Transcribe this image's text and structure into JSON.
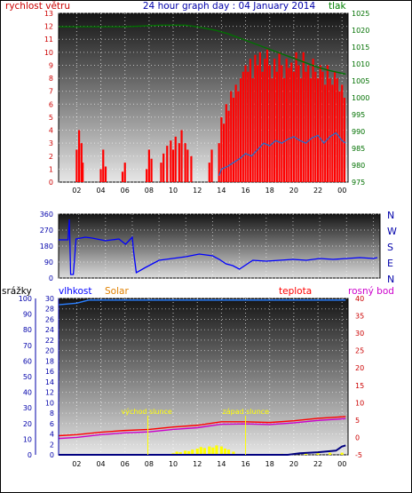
{
  "header": {
    "left_label": "rychlost větru",
    "title": "24 hour graph day : 04 January 2014",
    "right_label": "tlak"
  },
  "colors": {
    "wind_speed": "#ff0000",
    "gust": "#1f6fd0",
    "pressure": "#007000",
    "direction": "#0000ff",
    "axis_blue": "#0000aa",
    "axis_red": "#cc0000",
    "temp": "#ff0000",
    "dew": "#cc00cc",
    "humidity": "#2a7fff",
    "solar": "#ffff00",
    "rain": "#000080",
    "bottom_label_srazky": "#000000",
    "bottom_label_vlhkost": "#0000ff",
    "bottom_label_solar": "#e08000",
    "bottom_label_teplota": "#ff0000",
    "bottom_label_rosny": "#cc00cc"
  },
  "bottom_labels": {
    "rain": "srážky",
    "humidity": "vlhkost",
    "solar": "Solar",
    "temp": "teplota",
    "dew": "rosný bod",
    "sunrise": "východ slunce",
    "sunset": "západ slunce"
  },
  "chart_data": [
    {
      "type": "line",
      "name_id": "wind-pressure",
      "x_ticks": [
        "02",
        "04",
        "06",
        "08",
        "10",
        "12",
        "14",
        "16",
        "18",
        "20",
        "22",
        "00"
      ],
      "x_tick_hours": [
        2,
        4,
        6,
        8,
        10,
        12,
        14,
        16,
        18,
        20,
        22,
        24
      ],
      "x_range": [
        0.5,
        24.5
      ],
      "y_left_ticks": [
        0,
        1,
        2,
        3,
        4,
        5,
        6,
        7,
        8,
        9,
        10,
        11,
        12,
        13
      ],
      "y_left_range": [
        0,
        13
      ],
      "y_right_ticks": [
        975,
        980,
        985,
        990,
        995,
        1000,
        1005,
        1010,
        1015,
        1020,
        1025
      ],
      "y_right_range": [
        975,
        1025
      ],
      "wind_bars": [
        [
          2.0,
          2.5
        ],
        [
          2.2,
          4.0
        ],
        [
          2.4,
          3.0
        ],
        [
          2.5,
          1.5
        ],
        [
          4.0,
          1.0
        ],
        [
          4.2,
          2.5
        ],
        [
          4.4,
          1.2
        ],
        [
          5.8,
          0.8
        ],
        [
          6.0,
          1.5
        ],
        [
          7.8,
          1.0
        ],
        [
          8.0,
          2.5
        ],
        [
          8.2,
          1.8
        ],
        [
          9.0,
          1.5
        ],
        [
          9.2,
          2.2
        ],
        [
          9.5,
          2.8
        ],
        [
          9.8,
          3.2
        ],
        [
          10.0,
          2.5
        ],
        [
          10.2,
          3.5
        ],
        [
          10.5,
          3.0
        ],
        [
          10.7,
          4.0
        ],
        [
          11.0,
          3.0
        ],
        [
          11.2,
          2.5
        ],
        [
          11.5,
          2.0
        ],
        [
          13.0,
          1.5
        ],
        [
          13.2,
          2.5
        ],
        [
          13.8,
          3.0
        ],
        [
          14.0,
          5.0
        ],
        [
          14.2,
          4.5
        ],
        [
          14.4,
          6.0
        ],
        [
          14.6,
          5.5
        ],
        [
          14.8,
          7.0
        ],
        [
          15.0,
          6.5
        ],
        [
          15.2,
          7.5
        ],
        [
          15.4,
          7.0
        ],
        [
          15.6,
          8.0
        ],
        [
          15.8,
          8.5
        ],
        [
          16.0,
          9.0
        ],
        [
          16.2,
          8.5
        ],
        [
          16.4,
          9.5
        ],
        [
          16.6,
          8.0
        ],
        [
          16.8,
          9.8
        ],
        [
          17.0,
          9.0
        ],
        [
          17.2,
          10.0
        ],
        [
          17.4,
          8.5
        ],
        [
          17.6,
          9.5
        ],
        [
          17.8,
          10.2
        ],
        [
          18.0,
          9.0
        ],
        [
          18.2,
          8.0
        ],
        [
          18.4,
          9.5
        ],
        [
          18.6,
          8.5
        ],
        [
          18.8,
          10.0
        ],
        [
          19.0,
          9.0
        ],
        [
          19.2,
          8.0
        ],
        [
          19.4,
          9.5
        ],
        [
          19.6,
          8.8
        ],
        [
          19.8,
          9.2
        ],
        [
          20.0,
          8.5
        ],
        [
          20.2,
          10.0
        ],
        [
          20.4,
          9.0
        ],
        [
          20.6,
          8.0
        ],
        [
          20.8,
          10.0
        ],
        [
          21.0,
          8.5
        ],
        [
          21.2,
          9.0
        ],
        [
          21.4,
          8.0
        ],
        [
          21.6,
          9.5
        ],
        [
          21.8,
          8.5
        ],
        [
          22.0,
          8.0
        ],
        [
          22.2,
          9.0
        ],
        [
          22.4,
          8.5
        ],
        [
          22.6,
          7.5
        ],
        [
          22.8,
          9.0
        ],
        [
          23.0,
          8.0
        ],
        [
          23.2,
          7.5
        ],
        [
          23.4,
          8.5
        ],
        [
          23.6,
          8.0
        ],
        [
          23.8,
          7.0
        ],
        [
          24.0,
          7.5
        ],
        [
          24.2,
          6.5
        ]
      ],
      "gust_points": [
        [
          13.8,
          0.5
        ],
        [
          14.0,
          1.0
        ],
        [
          14.5,
          1.2
        ],
        [
          15.0,
          1.5
        ],
        [
          15.5,
          1.8
        ],
        [
          16.0,
          2.2
        ],
        [
          16.5,
          2.0
        ],
        [
          17.0,
          2.5
        ],
        [
          17.5,
          3.0
        ],
        [
          18.0,
          2.8
        ],
        [
          18.5,
          3.2
        ],
        [
          19.0,
          3.0
        ],
        [
          19.5,
          3.3
        ],
        [
          20.0,
          3.5
        ],
        [
          20.5,
          3.2
        ],
        [
          21.0,
          3.0
        ],
        [
          21.5,
          3.4
        ],
        [
          22.0,
          3.6
        ],
        [
          22.5,
          3.0
        ],
        [
          23.0,
          3.5
        ],
        [
          23.5,
          3.8
        ],
        [
          24.0,
          3.2
        ],
        [
          24.3,
          3.0
        ]
      ],
      "pressure_points": [
        [
          0.5,
          1021
        ],
        [
          3.0,
          1021
        ],
        [
          6.0,
          1021
        ],
        [
          9.0,
          1021.5
        ],
        [
          11.0,
          1021.5
        ],
        [
          12.0,
          1021
        ],
        [
          13.5,
          1020
        ],
        [
          14.5,
          1019
        ],
        [
          16.0,
          1017
        ],
        [
          17.5,
          1015
        ],
        [
          19.0,
          1013
        ],
        [
          20.5,
          1011
        ],
        [
          22.0,
          1009
        ],
        [
          23.0,
          1008
        ],
        [
          24.3,
          1007
        ]
      ]
    },
    {
      "type": "line",
      "name_id": "wind-direction",
      "x_range": [
        0.5,
        24.5
      ],
      "y_left_ticks": [
        0,
        90,
        180,
        270,
        360
      ],
      "y_left_range": [
        0,
        360
      ],
      "right_labels": [
        "N",
        "W",
        "S",
        "E",
        "N"
      ],
      "points": [
        [
          0.5,
          215
        ],
        [
          1.2,
          215
        ],
        [
          1.3,
          330
        ],
        [
          1.4,
          20
        ],
        [
          1.6,
          20
        ],
        [
          1.8,
          220
        ],
        [
          2.5,
          230
        ],
        [
          3.0,
          225
        ],
        [
          4.0,
          210
        ],
        [
          5.0,
          220
        ],
        [
          5.5,
          190
        ],
        [
          6.0,
          230
        ],
        [
          6.1,
          150
        ],
        [
          6.3,
          30
        ],
        [
          7.0,
          60
        ],
        [
          8.0,
          100
        ],
        [
          9.0,
          110
        ],
        [
          10.0,
          120
        ],
        [
          11.0,
          135
        ],
        [
          12.0,
          125
        ],
        [
          12.5,
          105
        ],
        [
          13.0,
          80
        ],
        [
          13.5,
          70
        ],
        [
          14.0,
          50
        ],
        [
          15.0,
          100
        ],
        [
          16.0,
          95
        ],
        [
          17.0,
          100
        ],
        [
          18.0,
          105
        ],
        [
          19.0,
          100
        ],
        [
          20.0,
          110
        ],
        [
          21.0,
          105
        ],
        [
          22.0,
          110
        ],
        [
          23.0,
          115
        ],
        [
          24.0,
          110
        ],
        [
          24.3,
          115
        ]
      ]
    },
    {
      "type": "line",
      "name_id": "temp-humidity-solar-rain",
      "x_range": [
        0.5,
        24.5
      ],
      "y_left_ticks": [
        0,
        10,
        20,
        30,
        40,
        50,
        60,
        70,
        80,
        90,
        100
      ],
      "y_left_range": [
        0,
        100
      ],
      "y_mid_ticks": [
        0,
        2,
        4,
        6,
        8,
        10,
        12,
        14,
        16,
        18,
        20,
        22,
        24,
        26,
        28,
        30
      ],
      "y_mid_range": [
        0,
        30
      ],
      "y_right_ticks": [
        -5,
        0,
        5,
        10,
        15,
        20,
        25,
        30,
        35,
        40
      ],
      "y_right_range": [
        -5,
        40
      ],
      "humidity_points": [
        [
          0.5,
          96
        ],
        [
          2.0,
          97
        ],
        [
          3.0,
          99
        ],
        [
          4.0,
          99
        ],
        [
          24.3,
          99
        ]
      ],
      "temp_points": [
        [
          0.5,
          0.5
        ],
        [
          2.0,
          0.8
        ],
        [
          4.0,
          1.5
        ],
        [
          6.0,
          2.0
        ],
        [
          8.0,
          2.3
        ],
        [
          10.0,
          3.0
        ],
        [
          12.0,
          3.5
        ],
        [
          14.0,
          4.5
        ],
        [
          16.0,
          4.5
        ],
        [
          18.0,
          4.3
        ],
        [
          20.0,
          4.8
        ],
        [
          22.0,
          5.5
        ],
        [
          24.3,
          6.0
        ]
      ],
      "dew_points": [
        [
          0.5,
          -0.3
        ],
        [
          2.0,
          0.0
        ],
        [
          4.0,
          0.8
        ],
        [
          6.0,
          1.3
        ],
        [
          8.0,
          1.6
        ],
        [
          10.0,
          2.3
        ],
        [
          12.0,
          2.8
        ],
        [
          14.0,
          3.8
        ],
        [
          16.0,
          3.9
        ],
        [
          18.0,
          3.7
        ],
        [
          20.0,
          4.2
        ],
        [
          22.0,
          4.9
        ],
        [
          24.3,
          5.4
        ]
      ],
      "solar_bars": [
        [
          10.0,
          0.3
        ],
        [
          10.3,
          0.6
        ],
        [
          10.6,
          0.5
        ],
        [
          11.0,
          0.8
        ],
        [
          11.3,
          0.7
        ],
        [
          11.6,
          1.0
        ],
        [
          12.0,
          1.2
        ],
        [
          12.3,
          1.5
        ],
        [
          12.6,
          1.3
        ],
        [
          13.0,
          1.6
        ],
        [
          13.3,
          1.4
        ],
        [
          13.6,
          1.8
        ],
        [
          14.0,
          1.6
        ],
        [
          14.3,
          1.2
        ],
        [
          14.6,
          1.0
        ],
        [
          15.0,
          0.6
        ],
        [
          19.0,
          0.2
        ],
        [
          20.0,
          0.3
        ],
        [
          21.0,
          0.3
        ],
        [
          22.0,
          0.3
        ],
        [
          23.0,
          0.4
        ],
        [
          24.0,
          0.4
        ]
      ],
      "rain_points": [
        [
          0.5,
          0
        ],
        [
          19.5,
          0
        ],
        [
          20.5,
          0.3
        ],
        [
          22.0,
          0.5
        ],
        [
          23.5,
          0.8
        ],
        [
          24.0,
          1.6
        ],
        [
          24.3,
          1.8
        ]
      ],
      "sunrise_hour": 7.9,
      "sunset_hour": 16.0
    }
  ]
}
